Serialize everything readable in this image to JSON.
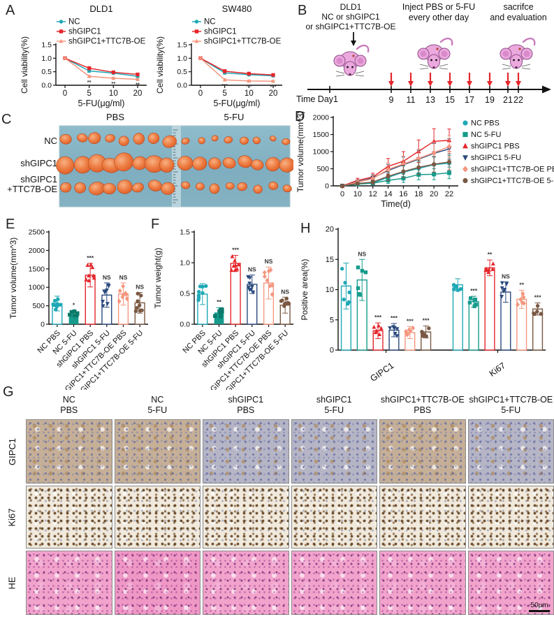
{
  "panels": {
    "a": "A",
    "b": "B",
    "c": "C",
    "d": "D",
    "e": "E",
    "f": "F",
    "g": "G",
    "h": "H"
  },
  "panel_b": {
    "cells_label_lines": [
      "DLD1",
      "NC or shGIPC1",
      "or shGIPC1+TTC7B-OE"
    ],
    "inject_label_lines": [
      "Inject PBS or 5-FU",
      "every other day"
    ],
    "sacrifice_label_lines": [
      "sacrifce",
      "and evaluation"
    ],
    "time_label": "Time Day1",
    "day_ticks": [
      "9",
      "11",
      "13",
      "15",
      "17",
      "19",
      "21",
      "22"
    ]
  },
  "panel_c": {
    "group_headers": [
      "PBS",
      "5-FU"
    ],
    "row_labels": [
      [
        "NC"
      ],
      [
        "shGIPC1"
      ],
      [
        "shGIPC1",
        "+TTC7B-OE"
      ]
    ]
  },
  "panel_g": {
    "col_headers": [
      {
        "l1": "NC",
        "l2": "PBS"
      },
      {
        "l1": "NC",
        "l2": "5-FU"
      },
      {
        "l1": "shGIPC1",
        "l2": "PBS"
      },
      {
        "l1": "shGIPC1",
        "l2": "5-FU"
      },
      {
        "l1": "shGIPC1+TTC7B-OE",
        "l2": "PBS"
      },
      {
        "l1": "shGIPC1+TTC7B-OE",
        "l2": "5-FU"
      }
    ],
    "row_labels": [
      "GIPC1",
      "Ki67",
      "HE"
    ],
    "scale_bar_label": "50μm"
  },
  "condition_colors": {
    "teal": "#1FA8B5",
    "teal_green": "#169B8C",
    "red": "#E5262B",
    "navy": "#2B4A7D",
    "salmon": "#F5977F",
    "brown": "#7A5843"
  },
  "chart_data": [
    {
      "panel": "A-left",
      "type": "line",
      "title": "DLD1",
      "xlabel": "5-FU(μg/ml)",
      "ylabel": "Cell viability(%)",
      "ylim": [
        0,
        1.5
      ],
      "yticks": [
        0,
        0.5,
        1,
        1.5
      ],
      "ytick_labels": [
        "0.0",
        "0.5",
        "1.0",
        "1.5"
      ],
      "x_tick_labels": [
        "0",
        "5",
        "10",
        "20"
      ],
      "legend_position": "top",
      "series": [
        {
          "name": "NC",
          "color": "#1FA8B5",
          "marker": "circle",
          "values": [
            1.0,
            0.53,
            0.45,
            0.33
          ],
          "errors": [
            0.04,
            0.05,
            0.04,
            0.04
          ]
        },
        {
          "name": "shGIPC1",
          "color": "#E5262B",
          "marker": "square",
          "values": [
            1.0,
            0.63,
            0.48,
            0.4
          ],
          "errors": [
            0.04,
            0.06,
            0.05,
            0.04
          ]
        },
        {
          "name": "shGIPC1+TTC7B-OE",
          "color": "#F5977F",
          "marker": "triangle-up",
          "values": [
            1.0,
            0.33,
            0.26,
            0.22
          ],
          "errors": [
            0.03,
            0.04,
            0.03,
            0.03
          ],
          "point_annotations": [
            "",
            "**",
            "**",
            "**"
          ]
        }
      ]
    },
    {
      "panel": "A-right",
      "type": "line",
      "title": "SW480",
      "xlabel": "5-FU(μg/ml)",
      "ylabel": "Cell viability(%)",
      "ylim": [
        0,
        1.5
      ],
      "yticks": [
        0,
        0.5,
        1,
        1.5
      ],
      "ytick_labels": [
        "0.0",
        "0.5",
        "1.0",
        "1.5"
      ],
      "x_tick_labels": [
        "0",
        "5",
        "10",
        "20"
      ],
      "legend_position": "top",
      "series": [
        {
          "name": "NC",
          "color": "#1FA8B5",
          "marker": "circle",
          "values": [
            1.0,
            0.46,
            0.39,
            0.35
          ],
          "errors": [
            0.04,
            0.05,
            0.04,
            0.04
          ]
        },
        {
          "name": "shGIPC1",
          "color": "#E5262B",
          "marker": "square",
          "values": [
            1.0,
            0.52,
            0.43,
            0.38
          ],
          "errors": [
            0.04,
            0.06,
            0.05,
            0.04
          ]
        },
        {
          "name": "shGIPC1+TTC7B-OE",
          "color": "#F5977F",
          "marker": "triangle-up",
          "values": [
            1.0,
            0.2,
            0.16,
            0.15
          ],
          "errors": [
            0.03,
            0.04,
            0.03,
            0.03
          ],
          "point_annotations": [
            "",
            "***",
            "***",
            "***"
          ]
        }
      ]
    },
    {
      "panel": "D",
      "type": "line",
      "title": "",
      "xlabel": "Time(d)",
      "ylabel": "Tumor volume(mm^3)",
      "ylim": [
        0,
        2000
      ],
      "yticks": [
        0,
        500,
        1000,
        1500,
        2000
      ],
      "ytick_labels": [
        "0",
        "500",
        "1000",
        "1500",
        "2000"
      ],
      "x_tick_labels": [
        "0",
        "10",
        "12",
        "14",
        "16",
        "18",
        "20",
        "22"
      ],
      "legend_position": "right",
      "series": [
        {
          "name": "NC PBS",
          "color": "#1FA8B5",
          "marker": "circle",
          "values": [
            0,
            60,
            90,
            250,
            400,
            510,
            620,
            660
          ],
          "errors": [
            0,
            40,
            60,
            120,
            180,
            200,
            220,
            230
          ]
        },
        {
          "name": "NC 5-FU",
          "color": "#169B8C",
          "marker": "square",
          "values": [
            0,
            50,
            80,
            160,
            220,
            330,
            340,
            380
          ],
          "errors": [
            0,
            30,
            50,
            90,
            120,
            150,
            160,
            170
          ]
        },
        {
          "name": "shGIPC1 PBS",
          "color": "#E5262B",
          "marker": "triangle-up",
          "values": [
            0,
            160,
            260,
            570,
            720,
            1010,
            1300,
            1330
          ],
          "errors": [
            0,
            60,
            110,
            230,
            280,
            330,
            370,
            330
          ]
        },
        {
          "name": "shGIPC1 5-FU",
          "color": "#2B4A7D",
          "marker": "triangle-down",
          "values": [
            0,
            120,
            230,
            450,
            620,
            780,
            950,
            1080
          ],
          "errors": [
            0,
            50,
            90,
            180,
            220,
            260,
            290,
            300
          ]
        },
        {
          "name": "shGIPC1+TTC7B-OE PBS",
          "color": "#F5977F",
          "marker": "diamond",
          "values": [
            0,
            110,
            210,
            480,
            640,
            800,
            970,
            1150
          ],
          "errors": [
            0,
            50,
            90,
            190,
            230,
            270,
            300,
            310
          ]
        },
        {
          "name": "shGIPC1+TTC7B-OE 5-FU",
          "color": "#7A5843",
          "marker": "circle",
          "values": [
            0,
            70,
            110,
            280,
            420,
            540,
            630,
            700
          ],
          "errors": [
            0,
            40,
            60,
            130,
            180,
            210,
            230,
            240
          ]
        }
      ]
    },
    {
      "panel": "E",
      "type": "bar",
      "ylabel": "Tumor volume(mm^3)",
      "ylim": [
        0,
        2500
      ],
      "yticks": [
        0,
        500,
        1000,
        1500,
        2000,
        2500
      ],
      "ytick_labels": [
        "0",
        "500",
        "1000",
        "1500",
        "2000",
        "2500"
      ],
      "categories": [
        "NC PBS",
        "NC 5-FU",
        "shGIPC1 PBS",
        "shGIPC1 5-FU",
        "shGIPC1+TTC7B-OE PBS",
        "shGIPC1+TTC7B-OE 5-FU"
      ],
      "values": [
        560,
        280,
        1330,
        790,
        820,
        580
      ],
      "errors": [
        200,
        90,
        320,
        330,
        300,
        280
      ],
      "annotations": [
        "",
        "*",
        "***",
        "NS",
        "NS",
        "NS"
      ],
      "colors": [
        "#1FA8B5",
        "#169B8C",
        "#E5262B",
        "#2B4A7D",
        "#F5977F",
        "#7A5843"
      ],
      "filled": [
        false,
        true,
        false,
        false,
        false,
        false
      ],
      "markers": [
        "circle",
        "square",
        "triangle-up",
        "triangle-down",
        "diamond",
        "circle"
      ],
      "dot_colors": [
        null,
        "#0C7A6A",
        null,
        null,
        null,
        null
      ]
    },
    {
      "panel": "F",
      "type": "bar",
      "ylabel": "Tumor weight(g)",
      "ylim": [
        0,
        1.5
      ],
      "yticks": [
        0,
        0.5,
        1,
        1.5
      ],
      "ytick_labels": [
        "0.0",
        "0.5",
        "1.0",
        "1.5"
      ],
      "categories": [
        "NC PBS",
        "NC 5-FU",
        "shGIPC1 PBS",
        "shGIPC1 5-FU",
        "shGIPC1+TTC7B-OE PBS",
        "shGIPC1+TTC7B-OE 5-FU"
      ],
      "values": [
        0.49,
        0.19,
        0.99,
        0.65,
        0.67,
        0.31
      ],
      "errors": [
        0.17,
        0.08,
        0.13,
        0.15,
        0.26,
        0.13
      ],
      "annotations": [
        "",
        "**",
        "***",
        "NS",
        "NS",
        "NS"
      ],
      "colors": [
        "#1FA8B5",
        "#169B8C",
        "#E5262B",
        "#2B4A7D",
        "#F5977F",
        "#7A5843"
      ],
      "filled": [
        false,
        true,
        false,
        false,
        false,
        false
      ],
      "markers": [
        "circle",
        "square",
        "triangle-up",
        "triangle-down",
        "diamond",
        "circle"
      ],
      "dot_colors": [
        null,
        "#0C7A6A",
        null,
        null,
        null,
        null
      ]
    },
    {
      "panel": "H",
      "type": "grouped-bar",
      "ylabel": "Positive area(%)",
      "ylim": [
        0,
        20
      ],
      "yticks": [
        0,
        5,
        10,
        15,
        20
      ],
      "ytick_labels": [
        "0",
        "5",
        "10",
        "15",
        "20"
      ],
      "series_names": [
        "NC PBS",
        "NC 5-FU",
        "shGIPC1 PBS",
        "shGIPC1 5-FU",
        "shGIPC1+TTC7B-OE PBS",
        "shGIPC1+TTC7B-OE 5-FU"
      ],
      "colors": [
        "#1FA8B5",
        "#169B8C",
        "#E5262B",
        "#2B4A7D",
        "#F5977F",
        "#7A5843"
      ],
      "markers": [
        "circle",
        "square",
        "triangle-up",
        "triangle-down",
        "diamond",
        "circle"
      ],
      "groups": [
        {
          "label": "GIPC1",
          "values": [
            10.6,
            11.6,
            3.2,
            3.3,
            2.9,
            3.0
          ],
          "errors": [
            3.8,
            3.4,
            1.3,
            1.1,
            1.0,
            1.0
          ],
          "annotations": [
            "",
            "NS",
            "***",
            "***",
            "***",
            "***"
          ]
        },
        {
          "label": "Ki67",
          "values": [
            10.8,
            8.0,
            13.6,
            9.6,
            8.4,
            6.8
          ],
          "errors": [
            1.0,
            0.9,
            1.3,
            1.7,
            1.5,
            1.0
          ],
          "annotations": [
            "",
            "***",
            "**",
            "NS",
            "**",
            "***"
          ]
        }
      ]
    }
  ]
}
